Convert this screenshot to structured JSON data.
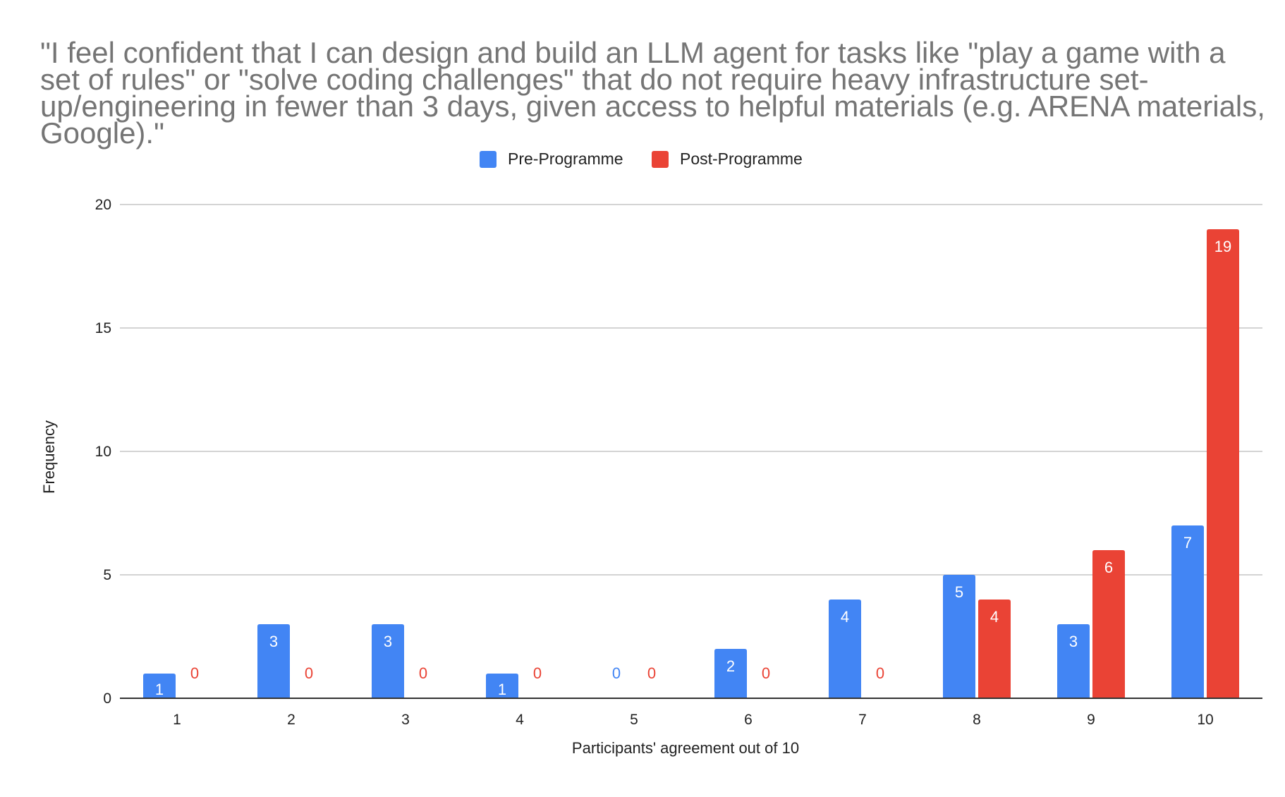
{
  "chart_data": {
    "type": "bar",
    "title": "\"I feel confident that I can design and build an LLM agent for tasks like \"play a game with a set of rules\" or \"solve coding challenges\" that do not require heavy infrastructure set-up/engineering in fewer than 3 days, given access to helpful materials (e.g. ARENA materials, Google).\"",
    "xlabel": "Participants' agreement out of 10",
    "ylabel": "Frequency",
    "categories": [
      "1",
      "2",
      "3",
      "4",
      "5",
      "6",
      "7",
      "8",
      "9",
      "10"
    ],
    "ylim": [
      0,
      20
    ],
    "yticks": [
      "0",
      "5",
      "10",
      "15",
      "20"
    ],
    "ytick_values": [
      0,
      5,
      10,
      15,
      20
    ],
    "grid": true,
    "legend_position": "top-center",
    "series": [
      {
        "name": "Pre-Programme",
        "color": "#4285f4",
        "values": [
          1,
          3,
          3,
          1,
          0,
          2,
          4,
          5,
          3,
          7
        ]
      },
      {
        "name": "Post-Programme",
        "color": "#ea4335",
        "values": [
          0,
          0,
          0,
          0,
          0,
          0,
          0,
          4,
          6,
          19
        ]
      }
    ]
  }
}
